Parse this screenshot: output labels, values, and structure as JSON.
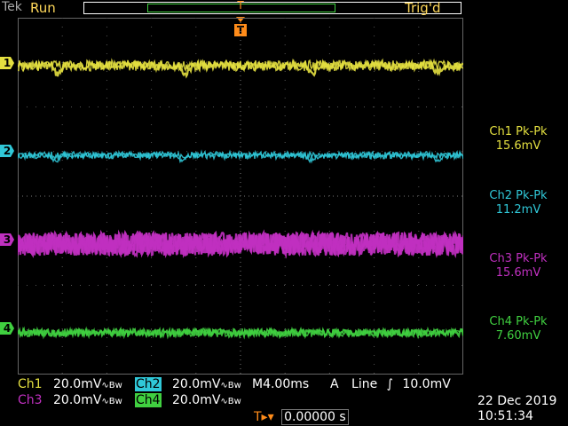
{
  "status": {
    "brand": "Tek",
    "run_state": "Run",
    "trigger_state": "Trig'd"
  },
  "trigger_markers": {
    "top": "T",
    "bottom": "T"
  },
  "channels": [
    {
      "id": "1",
      "color": "#e4e040",
      "pkpk_label": "Ch1 Pk-Pk",
      "pkpk_value": "15.6mV"
    },
    {
      "id": "2",
      "color": "#30c8d8",
      "pkpk_label": "Ch2 Pk-Pk",
      "pkpk_value": "11.2mV"
    },
    {
      "id": "3",
      "color": "#c030c0",
      "pkpk_label": "Ch3 Pk-Pk",
      "pkpk_value": "15.6mV"
    },
    {
      "id": "4",
      "color": "#40d040",
      "pkpk_label": "Ch4 Pk-Pk",
      "pkpk_value": "7.60mV"
    }
  ],
  "bottom": {
    "ch1": {
      "name": "Ch1",
      "scale": "20.0mV",
      "suffix": "∿Bw"
    },
    "ch2": {
      "name": "Ch2",
      "scale": "20.0mV",
      "suffix": "∿Bw"
    },
    "ch3": {
      "name": "Ch3",
      "scale": "20.0mV",
      "suffix": "∿Bw"
    },
    "ch4": {
      "name": "Ch4",
      "scale": "20.0mV",
      "suffix": "∿Bw"
    },
    "timebase": "M4.00ms",
    "trigger_source": "A",
    "trigger_type": "Line",
    "trigger_slope": "∫",
    "trigger_level": "10.0mV",
    "trigger_pos_icon": "T▸▾",
    "trigger_pos": "0.00000 s",
    "date": "22 Dec  2019",
    "time": "10:51:34"
  }
}
